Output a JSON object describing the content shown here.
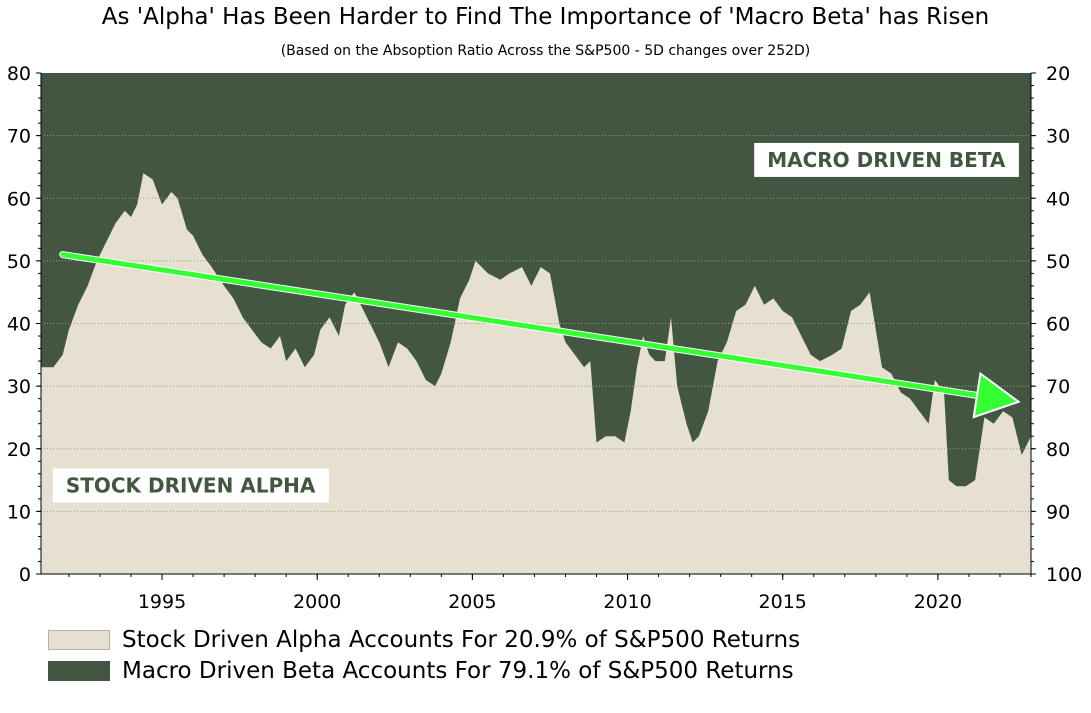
{
  "chart_data": {
    "type": "area",
    "title": "As 'Alpha' Has Been Harder to Find The Importance of 'Macro Beta' has Risen",
    "subtitle": "(Based on the Absoption Ratio Across the S&P500 - 5D changes over 252D)",
    "x_range": [
      1991.1,
      2023.0
    ],
    "x_ticks": [
      1995,
      2000,
      2005,
      2010,
      2015,
      2020
    ],
    "y_left": {
      "range": [
        0,
        80
      ],
      "ticks": [
        0,
        10,
        20,
        30,
        40,
        50,
        60,
        70,
        80
      ]
    },
    "y_right": {
      "range": [
        100,
        20
      ],
      "inverted": true,
      "ticks": [
        20,
        30,
        40,
        50,
        60,
        70,
        80,
        90,
        100
      ]
    },
    "grid": "horizontal dotted",
    "series": [
      {
        "name": "Stock Driven Alpha",
        "color": "#e6e0d0",
        "points": [
          [
            1991.1,
            33
          ],
          [
            1991.5,
            33
          ],
          [
            1991.8,
            35
          ],
          [
            1992.0,
            39
          ],
          [
            1992.3,
            43
          ],
          [
            1992.6,
            46
          ],
          [
            1992.9,
            50
          ],
          [
            1993.2,
            53
          ],
          [
            1993.5,
            56
          ],
          [
            1993.8,
            58
          ],
          [
            1994.0,
            57
          ],
          [
            1994.2,
            59
          ],
          [
            1994.4,
            64
          ],
          [
            1994.7,
            63
          ],
          [
            1995.0,
            59
          ],
          [
            1995.3,
            61
          ],
          [
            1995.5,
            60
          ],
          [
            1995.8,
            55
          ],
          [
            1996.0,
            54
          ],
          [
            1996.3,
            51
          ],
          [
            1996.6,
            49
          ],
          [
            1997.0,
            46
          ],
          [
            1997.3,
            44
          ],
          [
            1997.6,
            41
          ],
          [
            1997.9,
            39
          ],
          [
            1998.2,
            37
          ],
          [
            1998.5,
            36
          ],
          [
            1998.8,
            38
          ],
          [
            1999.0,
            34
          ],
          [
            1999.3,
            36
          ],
          [
            1999.6,
            33
          ],
          [
            1999.9,
            35
          ],
          [
            2000.1,
            39
          ],
          [
            2000.4,
            41
          ],
          [
            2000.7,
            38
          ],
          [
            2000.9,
            43
          ],
          [
            2001.2,
            45
          ],
          [
            2001.5,
            42
          ],
          [
            2001.8,
            39
          ],
          [
            2002.0,
            37
          ],
          [
            2002.3,
            33
          ],
          [
            2002.6,
            37
          ],
          [
            2002.9,
            36
          ],
          [
            2003.2,
            34
          ],
          [
            2003.5,
            31
          ],
          [
            2003.8,
            30
          ],
          [
            2004.0,
            32
          ],
          [
            2004.3,
            37
          ],
          [
            2004.6,
            44
          ],
          [
            2004.9,
            47
          ],
          [
            2005.1,
            50
          ],
          [
            2005.5,
            48
          ],
          [
            2005.9,
            47
          ],
          [
            2006.2,
            48
          ],
          [
            2006.6,
            49
          ],
          [
            2006.9,
            46
          ],
          [
            2007.2,
            49
          ],
          [
            2007.5,
            48
          ],
          [
            2007.8,
            40
          ],
          [
            2008.0,
            37
          ],
          [
            2008.3,
            35
          ],
          [
            2008.6,
            33
          ],
          [
            2008.8,
            34
          ],
          [
            2009.0,
            21
          ],
          [
            2009.3,
            22
          ],
          [
            2009.6,
            22
          ],
          [
            2009.9,
            21
          ],
          [
            2010.1,
            26
          ],
          [
            2010.3,
            33
          ],
          [
            2010.5,
            38
          ],
          [
            2010.7,
            35
          ],
          [
            2010.9,
            34
          ],
          [
            2011.2,
            34
          ],
          [
            2011.4,
            41
          ],
          [
            2011.6,
            30
          ],
          [
            2011.9,
            24
          ],
          [
            2012.1,
            21
          ],
          [
            2012.3,
            22
          ],
          [
            2012.6,
            26
          ],
          [
            2012.9,
            34
          ],
          [
            2013.2,
            37
          ],
          [
            2013.5,
            42
          ],
          [
            2013.8,
            43
          ],
          [
            2014.1,
            46
          ],
          [
            2014.4,
            43
          ],
          [
            2014.7,
            44
          ],
          [
            2015.0,
            42
          ],
          [
            2015.3,
            41
          ],
          [
            2015.6,
            38
          ],
          [
            2015.9,
            35
          ],
          [
            2016.2,
            34
          ],
          [
            2016.6,
            35
          ],
          [
            2016.9,
            36
          ],
          [
            2017.2,
            42
          ],
          [
            2017.5,
            43
          ],
          [
            2017.8,
            45
          ],
          [
            2018.0,
            39
          ],
          [
            2018.2,
            33
          ],
          [
            2018.5,
            32
          ],
          [
            2018.8,
            29
          ],
          [
            2019.1,
            28
          ],
          [
            2019.4,
            26
          ],
          [
            2019.7,
            24
          ],
          [
            2019.9,
            31
          ],
          [
            2020.2,
            29
          ],
          [
            2020.35,
            15
          ],
          [
            2020.6,
            14
          ],
          [
            2020.9,
            14
          ],
          [
            2021.2,
            15
          ],
          [
            2021.5,
            25
          ],
          [
            2021.8,
            24
          ],
          [
            2022.1,
            26
          ],
          [
            2022.4,
            25
          ],
          [
            2022.7,
            19
          ],
          [
            2023.0,
            22
          ]
        ]
      },
      {
        "name": "Macro Driven Beta",
        "color": "#435641",
        "fill": "remainder above alpha to 80"
      }
    ],
    "trend_arrow": {
      "from": [
        1991.8,
        51
      ],
      "to": [
        2022.6,
        27.5
      ],
      "color": "#33ff33"
    },
    "annotations": [
      {
        "id": "macro",
        "text": "MACRO DRIVEN BETA",
        "x": 2014.5,
        "y": 65
      },
      {
        "id": "stock",
        "text": "STOCK DRIVEN ALPHA",
        "x": 1991.9,
        "y": 13
      }
    ],
    "legend": [
      {
        "label": "Stock Driven Alpha Accounts For 20.9% of S&P500 Returns",
        "color": "#e6e0d0"
      },
      {
        "label": "Macro Driven Beta Accounts For 79.1% of S&P500 Returns",
        "color": "#435641"
      }
    ]
  }
}
